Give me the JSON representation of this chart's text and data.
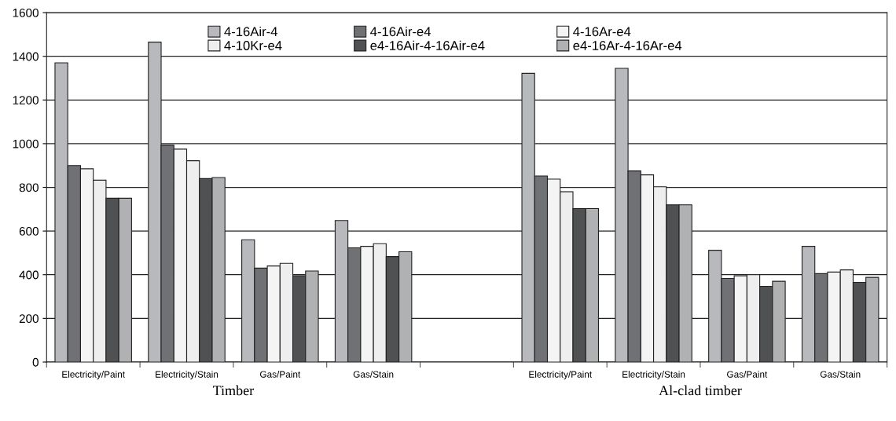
{
  "chart_data": {
    "type": "bar",
    "categories": [
      "Electricity/Paint",
      "Electricity/Stain",
      "Gas/Paint",
      "Gas/Stain",
      null,
      "Electricity/Paint",
      "Electricity/Stain",
      "Gas/Paint",
      "Gas/Stain"
    ],
    "series": [
      {
        "name": "4-16Air-4",
        "color": "#b8b9bd",
        "values": [
          1370,
          1465,
          560,
          648,
          null,
          1322,
          1345,
          512,
          530
        ]
      },
      {
        "name": "4-16Air-e4",
        "color": "#707175",
        "values": [
          900,
          993,
          430,
          523,
          null,
          852,
          875,
          383,
          405
        ]
      },
      {
        "name": "4-16Ar-e4",
        "color": "#f4f4f4",
        "values": [
          885,
          975,
          440,
          530,
          null,
          838,
          857,
          395,
          412
        ]
      },
      {
        "name": "4-10Kr-e4",
        "color": "#eeeeee",
        "values": [
          833,
          922,
          452,
          542,
          null,
          780,
          803,
          400,
          422
        ]
      },
      {
        "name": "e4-16Air-4-16Air-e4",
        "color": "#505153",
        "values": [
          750,
          840,
          395,
          483,
          null,
          703,
          720,
          347,
          365
        ]
      },
      {
        "name": "e4-16Ar-4-16Ar-e4",
        "color": "#b0b1b3",
        "values": [
          750,
          845,
          417,
          505,
          null,
          703,
          720,
          370,
          388
        ]
      }
    ],
    "ylim": [
      0,
      1600
    ],
    "yticks": [
      0,
      200,
      400,
      600,
      800,
      1000,
      1200,
      1400,
      1600
    ],
    "grid": "y",
    "legend": "top right",
    "annotations": [
      "Timber",
      "Al-clad timber"
    ]
  }
}
